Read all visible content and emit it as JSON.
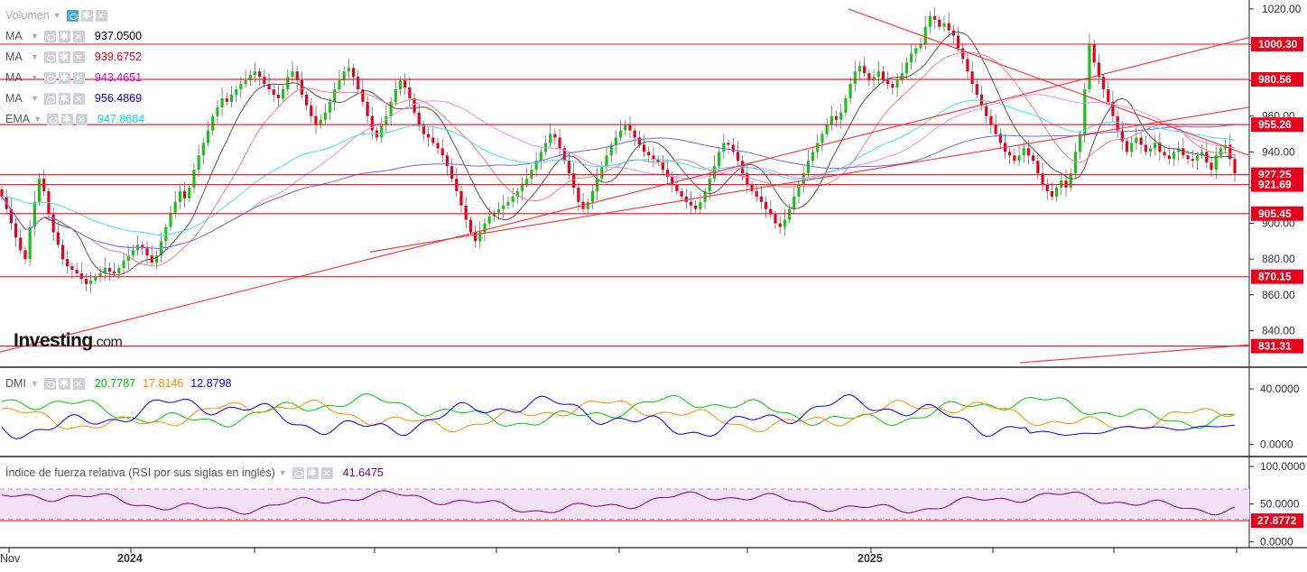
{
  "chart_data": [
    {
      "type": "candlestick",
      "title": "",
      "x_labels": [
        "Nov",
        "2024",
        "2025"
      ],
      "y_ticks": [
        840,
        860,
        880,
        900,
        920,
        940,
        960,
        980,
        1000,
        1020
      ],
      "ylim": [
        820,
        1025
      ],
      "grid": false,
      "price_levels": [
        {
          "label": "1000.30",
          "value": 1000.3
        },
        {
          "label": "980.56",
          "value": 980.56
        },
        {
          "label": "955.26",
          "value": 955.26
        },
        {
          "label": "927.25",
          "value": 927.25
        },
        {
          "label": "921.69",
          "value": 921.69
        },
        {
          "label": "905.45",
          "value": 905.45
        },
        {
          "label": "870.15",
          "value": 870.15
        },
        {
          "label": "831.31",
          "value": 831.31
        }
      ],
      "candles_close": [
        915,
        908,
        900,
        892,
        885,
        880,
        898,
        912,
        925,
        918,
        905,
        895,
        888,
        880,
        876,
        874,
        872,
        869,
        866,
        868,
        870,
        872,
        875,
        873,
        872,
        875,
        879,
        882,
        885,
        888,
        886,
        882,
        878,
        882,
        890,
        898,
        906,
        912,
        918,
        914,
        920,
        930,
        938,
        945,
        952,
        960,
        965,
        970,
        968,
        972,
        975,
        978,
        980,
        983,
        985,
        982,
        978,
        975,
        972,
        970,
        975,
        982,
        985,
        980,
        972,
        966,
        960,
        955,
        958,
        962,
        968,
        975,
        980,
        985,
        987,
        982,
        975,
        968,
        960,
        952,
        948,
        955,
        960,
        968,
        975,
        980,
        976,
        970,
        962,
        955,
        950,
        948,
        945,
        942,
        938,
        932,
        925,
        918,
        910,
        902,
        895,
        890,
        895,
        900,
        904,
        906,
        908,
        910,
        912,
        915,
        918,
        922,
        925,
        930,
        935,
        940,
        945,
        950,
        948,
        942,
        935,
        928,
        920,
        912,
        908,
        912,
        918,
        925,
        932,
        938,
        944,
        948,
        952,
        955,
        952,
        948,
        944,
        940,
        938,
        936,
        934,
        930,
        926,
        922,
        918,
        915,
        912,
        910,
        908,
        912,
        918,
        925,
        932,
        940,
        945,
        944,
        940,
        935,
        928,
        922,
        918,
        915,
        912,
        908,
        905,
        900,
        898,
        902,
        908,
        915,
        922,
        928,
        935,
        940,
        945,
        950,
        955,
        960,
        958,
        962,
        970,
        978,
        985,
        988,
        984,
        980,
        982,
        985,
        980,
        978,
        976,
        980,
        984,
        990,
        995,
        998,
        1000,
        1010,
        1016,
        1014,
        1010,
        1012,
        1008,
        1005,
        998,
        992,
        985,
        978,
        972,
        966,
        960,
        955,
        950,
        945,
        940,
        938,
        935,
        938,
        942,
        938,
        935,
        928,
        922,
        918,
        915,
        920,
        924,
        920,
        928,
        940,
        950,
        975,
        1000,
        990,
        982,
        975,
        968,
        960,
        952,
        946,
        940,
        945,
        948,
        944,
        940,
        942,
        945,
        940,
        938,
        936,
        940,
        942,
        938,
        936,
        935,
        938,
        940,
        934,
        930,
        938,
        942,
        944,
        936,
        928
      ],
      "series": [
        {
          "name": "Volumen",
          "value": ""
        },
        {
          "name": "MA",
          "value": "937.0500",
          "color": "#000000"
        },
        {
          "name": "MA",
          "value": "939.6752",
          "color": "#ff0000"
        },
        {
          "name": "MA",
          "value": "943.4651",
          "color": "#ff00ff"
        },
        {
          "name": "MA",
          "value": "956.4869",
          "color": "#0000ff"
        },
        {
          "name": "EMA",
          "value": "947.8684",
          "color": "#00e5ff"
        }
      ]
    },
    {
      "type": "line",
      "title": "DMI",
      "y_ticks": [
        0.0,
        40.0
      ],
      "y_tick_labels": [
        "0.0000",
        "40.0000"
      ],
      "ylim": [
        -8,
        55
      ],
      "series": [
        {
          "name": "DMI",
          "value": "20.7787",
          "color": "#00c800"
        },
        {
          "name": "DMI",
          "value": "17.8146",
          "color": "#ff8c00"
        },
        {
          "name": "DMI",
          "value": "12.8798",
          "color": "#0000ff"
        }
      ]
    },
    {
      "type": "line",
      "title": "Índice de fuerza relativa (RSI por sus siglas en inglés)",
      "y_ticks": [
        0,
        50,
        100
      ],
      "y_tick_labels": [
        "0.0000",
        "50.0000",
        "100.0000"
      ],
      "ylim": [
        -8,
        112
      ],
      "band": [
        30,
        70
      ],
      "level": {
        "label": "27.8772",
        "value": 27.8772
      },
      "series": [
        {
          "name": "RSI",
          "value": "41.6475",
          "color": "#800080"
        }
      ]
    }
  ],
  "logo": {
    "brand": "Investing",
    "suffix": ".com"
  },
  "icons": [
    "eye-icon",
    "gear-icon",
    "close-icon"
  ]
}
